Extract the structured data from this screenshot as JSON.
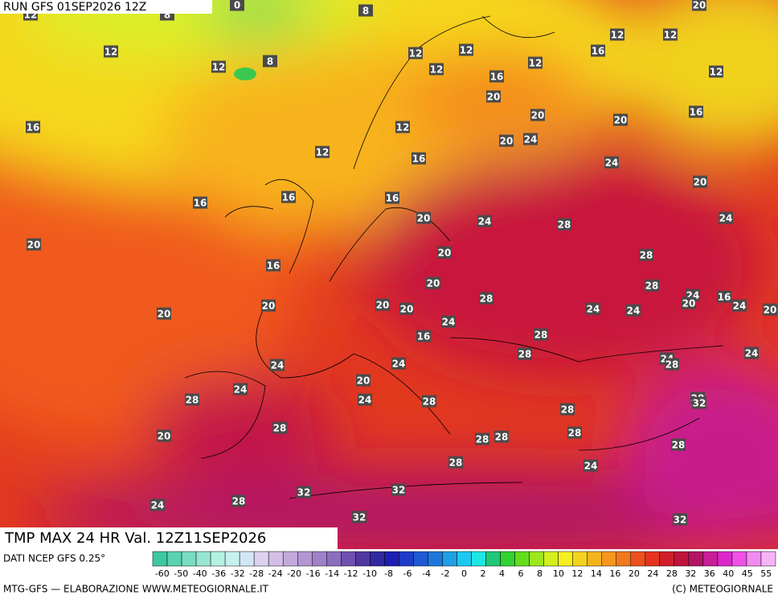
{
  "header": {
    "run": "RUN GFS 01SEP2026 12Z"
  },
  "footer": {
    "title": "TMP MAX 24 HR Val. 12Z11SEP2026",
    "source": "DATI NCEP GFS 0.25°",
    "credit": "MTG-GFS — ELABORAZIONE WWW.METEOGIORNALE.IT",
    "copyright": "(C) METEOGIORNALE"
  },
  "colorbar": {
    "colors": [
      "#3cc8a0",
      "#5ad2b0",
      "#78dcc0",
      "#96e6d2",
      "#b4f0e0",
      "#c8f0f0",
      "#d2e6f5",
      "#dcd2f0",
      "#d2bee6",
      "#c3aadc",
      "#b496d2",
      "#a082c8",
      "#8c6ebe",
      "#7050b0",
      "#5038a0",
      "#3228a0",
      "#1e1eb4",
      "#1e3cc8",
      "#1e5ad2",
      "#1e78dc",
      "#1ea0e6",
      "#1ec8f0",
      "#1ee6e6",
      "#1ec878",
      "#32d232",
      "#64dc1e",
      "#a0e61e",
      "#d2f01e",
      "#f5f01e",
      "#f5d21e",
      "#f5b41e",
      "#f5961e",
      "#f0781e",
      "#eb501e",
      "#e6321e",
      "#d21e28",
      "#be143c",
      "#b41464",
      "#c81e96",
      "#dc28c8",
      "#f050e6",
      "#f08cf0",
      "#f5b4f5"
    ],
    "labels": [
      -60,
      -50,
      -40,
      -36,
      -32,
      -28,
      -24,
      -20,
      -16,
      -14,
      -12,
      -10,
      -8,
      -6,
      -4,
      -2,
      0,
      2,
      4,
      6,
      8,
      10,
      12,
      14,
      16,
      20,
      24,
      28,
      32,
      36,
      40,
      45,
      55
    ]
  },
  "map": {
    "labels": [
      12,
      8,
      0,
      8,
      20,
      12,
      12,
      8,
      12,
      12,
      12,
      12,
      12,
      12,
      16,
      12,
      16,
      20,
      16,
      20,
      20,
      16,
      12,
      20,
      24,
      12,
      16,
      24,
      16,
      16,
      16,
      20,
      20,
      24,
      28,
      24,
      20,
      16,
      20,
      28,
      20,
      28,
      24,
      20,
      16,
      24,
      20,
      20,
      20,
      20,
      28,
      24,
      24,
      20,
      24,
      16,
      28,
      28,
      24,
      24,
      28,
      24,
      24,
      20,
      24,
      28,
      24,
      28,
      28,
      32,
      28,
      28,
      20,
      28,
      28,
      28,
      28,
      28,
      24,
      32,
      32,
      28,
      24,
      32,
      32
    ]
  }
}
